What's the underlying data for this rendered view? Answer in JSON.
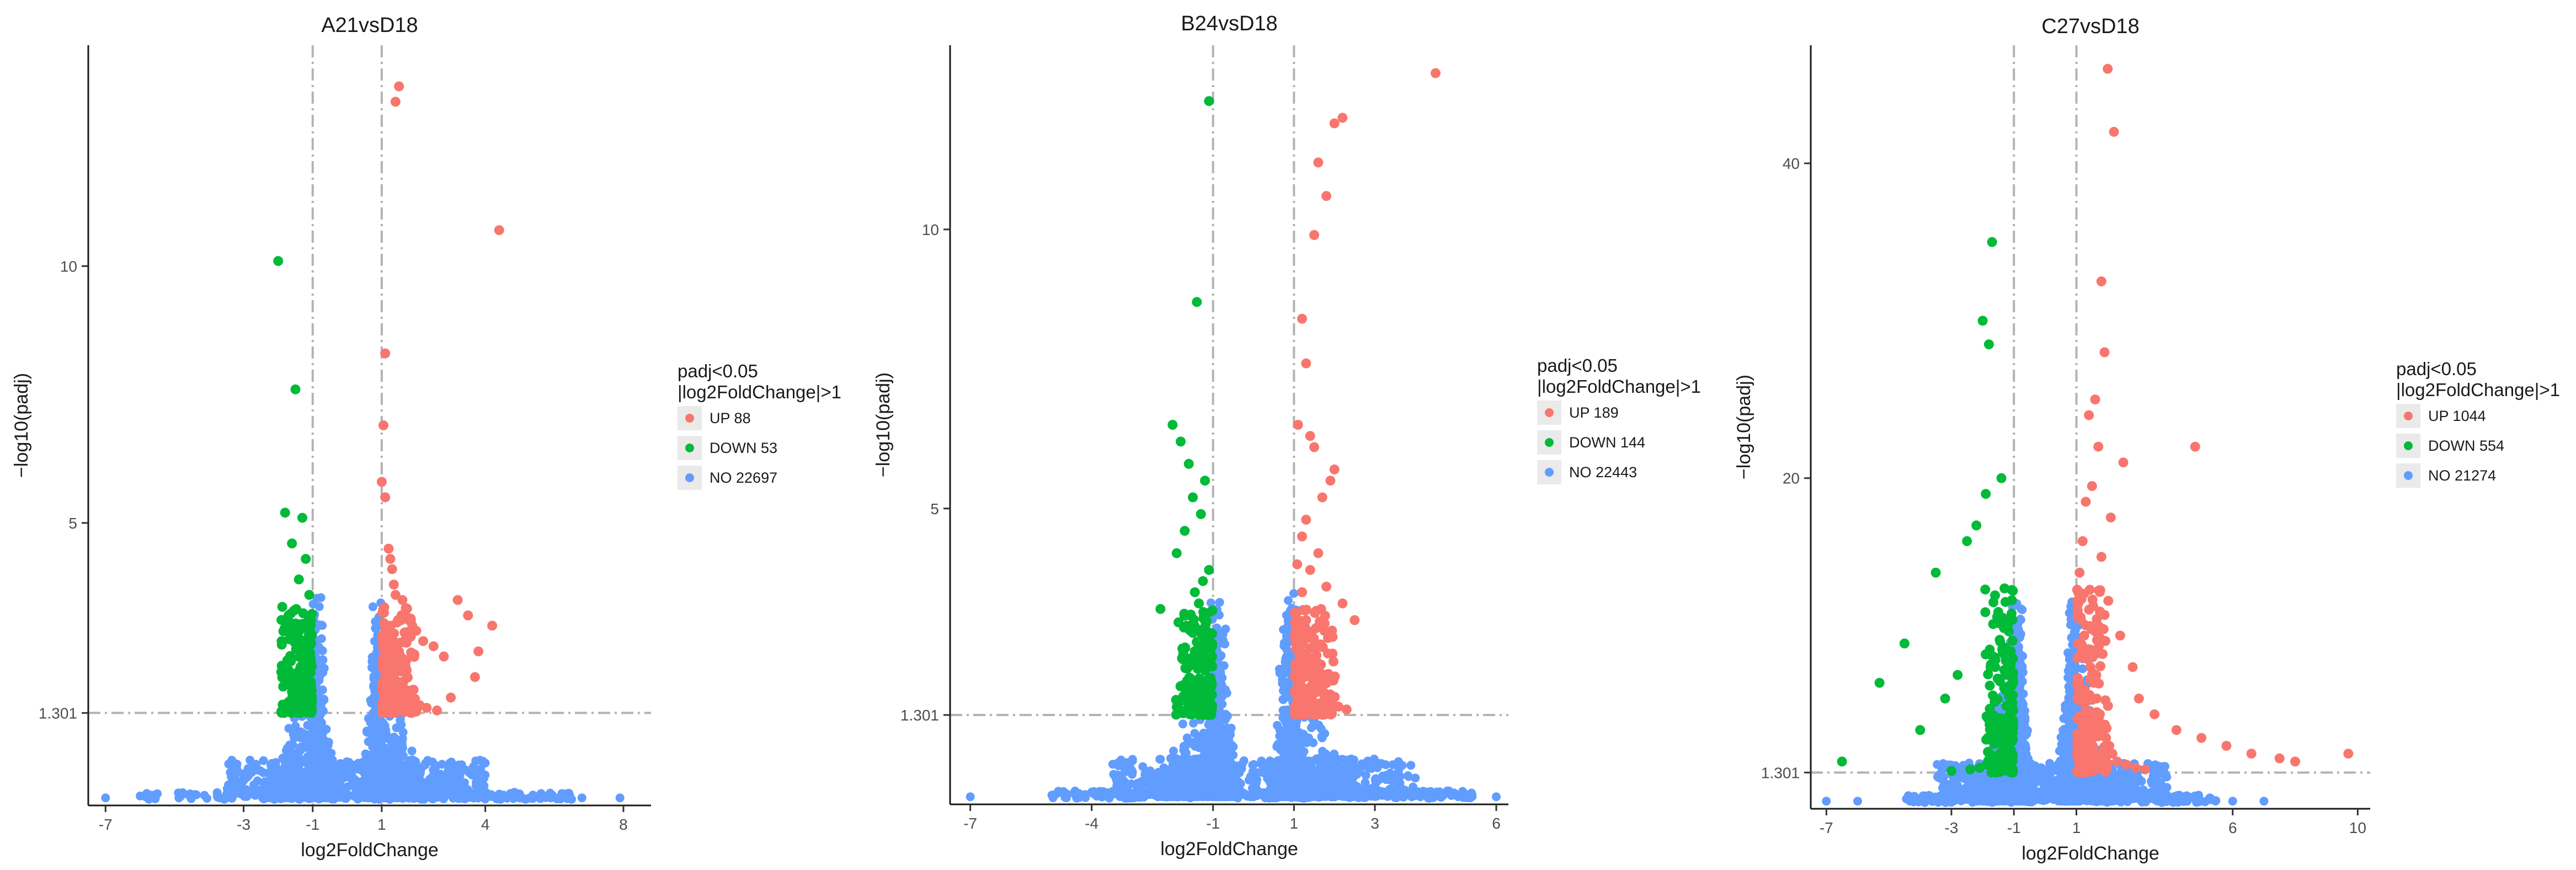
{
  "chart_data": [
    {
      "type": "scatter",
      "title": "A21vsD18",
      "xlabel": "log2FoldChange",
      "ylabel": "−log10(padj)",
      "xlim": [
        -7.5,
        8.8
      ],
      "ylim": [
        -0.5,
        14.3
      ],
      "xticks": [
        -7,
        -3,
        -1,
        1,
        4,
        8
      ],
      "yticks": [
        1.301,
        5,
        10
      ],
      "ytick_labels": [
        "1.301",
        "5",
        "10"
      ],
      "threshold_lines": {
        "x": [
          -1,
          1
        ],
        "y": 1.301
      },
      "legend": {
        "title": [
          "padj<0.05",
          "|log2FoldChange|>1"
        ],
        "entries": [
          {
            "name": "UP",
            "count": "88",
            "color": "#f8766d"
          },
          {
            "name": "DOWN",
            "count": "53",
            "color": "#00ba38"
          },
          {
            "name": "NO",
            "count": "22697",
            "color": "#619cff"
          }
        ]
      },
      "series": [
        {
          "name": "UP",
          "color": "#f8766d",
          "x": [
            1.5,
            1.4,
            1.1,
            1.05,
            1.0,
            1.1,
            1.2,
            1.25,
            1.3,
            1.35,
            1.4,
            1.6,
            1.7,
            1.8,
            2.0,
            2.2,
            2.5,
            2.8,
            3.2,
            3.5,
            1.1,
            1.2,
            1.3,
            1.5,
            1.05,
            1.08,
            1.15,
            1.22,
            1.3,
            1.45,
            1.55,
            1.65,
            1.75,
            1.9,
            2.1,
            2.3,
            2.6,
            3.0,
            3.8,
            4.2,
            4.4,
            3.7,
            1.12,
            1.18,
            1.28,
            1.38,
            1.48,
            1.58,
            2.05
          ],
          "y": [
            13.5,
            13.2,
            8.3,
            6.9,
            5.8,
            5.5,
            4.5,
            4.3,
            4.1,
            3.8,
            3.6,
            3.5,
            3.3,
            3.1,
            2.9,
            2.7,
            2.6,
            2.4,
            3.5,
            3.2,
            3.0,
            2.8,
            2.6,
            2.5,
            2.4,
            2.3,
            2.2,
            2.1,
            2.0,
            1.9,
            1.8,
            1.7,
            1.6,
            1.5,
            1.45,
            1.4,
            1.35,
            1.6,
            2.5,
            3.0,
            10.7,
            2.0,
            1.9,
            1.8,
            1.7,
            1.6,
            1.55,
            1.5,
            1.45
          ]
        },
        {
          "name": "DOWN",
          "color": "#00ba38",
          "x": [
            -2.0,
            -1.5,
            -1.8,
            -1.3,
            -1.6,
            -1.2,
            -1.4,
            -1.1,
            -1.7,
            -1.9,
            -1.25,
            -1.15,
            -1.35,
            -1.45,
            -1.05,
            -1.3,
            -1.5,
            -1.2,
            -1.1,
            -1.4
          ],
          "y": [
            10.1,
            7.6,
            5.2,
            5.1,
            4.6,
            4.3,
            3.9,
            3.6,
            3.2,
            2.7,
            2.6,
            2.4,
            2.2,
            2.0,
            1.9,
            1.8,
            1.7,
            1.6,
            1.5,
            1.4
          ]
        },
        {
          "name": "NO",
          "color": "#619cff",
          "mode": "volcano-cloud",
          "n": 1500,
          "xrange": [
            -6.0,
            6.5
          ],
          "outliers_x": [
            -7.0,
            -5.7,
            5.9,
            6.8,
            7.9
          ]
        }
      ]
    },
    {
      "type": "scatter",
      "title": "B24vsD18",
      "xlabel": "log2FoldChange",
      "ylabel": "−log10(padj)",
      "xlim": [
        -7.5,
        6.3
      ],
      "ylim": [
        -0.3,
        13.3
      ],
      "xticks": [
        -7,
        -4,
        -1,
        1,
        3,
        6
      ],
      "yticks": [
        1.301,
        5,
        10
      ],
      "ytick_labels": [
        "1.301",
        "5",
        "10"
      ],
      "threshold_lines": {
        "x": [
          -1,
          1
        ],
        "y": 1.301
      },
      "legend": {
        "title": [
          "padj<0.05",
          "|log2FoldChange|>1"
        ],
        "entries": [
          {
            "name": "UP",
            "count": "189",
            "color": "#f8766d"
          },
          {
            "name": "DOWN",
            "count": "144",
            "color": "#00ba38"
          },
          {
            "name": "NO",
            "count": "22443",
            "color": "#619cff"
          }
        ]
      },
      "series": [
        {
          "name": "UP",
          "color": "#f8766d",
          "x": [
            4.5,
            2.2,
            2.0,
            1.6,
            1.8,
            1.5,
            1.2,
            1.3,
            1.1,
            1.4,
            1.5,
            2.0,
            1.9,
            1.7,
            1.3,
            1.2,
            1.6,
            1.4,
            1.8,
            2.2,
            2.5,
            1.1,
            1.15,
            1.25,
            1.35,
            1.45,
            1.55,
            1.65,
            1.75,
            1.85,
            1.95,
            2.1,
            2.3,
            1.05,
            1.08,
            1.2,
            1.3,
            1.4,
            1.5,
            1.6
          ],
          "y": [
            12.8,
            12.0,
            11.9,
            11.2,
            10.6,
            9.9,
            8.4,
            7.6,
            6.5,
            6.3,
            6.1,
            5.7,
            5.5,
            5.2,
            4.8,
            4.5,
            4.2,
            3.9,
            3.6,
            3.3,
            3.0,
            2.8,
            2.6,
            2.4,
            2.2,
            2.0,
            1.9,
            1.8,
            1.7,
            1.6,
            1.5,
            1.45,
            1.4,
            1.35,
            4.0,
            3.5,
            3.0,
            2.5,
            2.0,
            1.5
          ]
        },
        {
          "name": "DOWN",
          "color": "#00ba38",
          "x": [
            -1.1,
            -1.4,
            -2.0,
            -1.8,
            -1.6,
            -1.2,
            -1.5,
            -1.3,
            -1.7,
            -2.3,
            -1.9,
            -1.1,
            -1.25,
            -1.45,
            -1.35,
            -1.55,
            -1.65,
            -1.15,
            -1.05,
            -1.75,
            -1.2,
            -1.4,
            -1.3,
            -1.1,
            -1.6,
            -1.5
          ],
          "y": [
            12.3,
            8.7,
            6.5,
            6.2,
            5.8,
            5.5,
            5.2,
            4.9,
            4.6,
            3.2,
            4.2,
            3.9,
            3.7,
            3.5,
            3.3,
            3.1,
            2.9,
            2.7,
            2.5,
            2.3,
            2.1,
            1.9,
            1.7,
            1.6,
            1.5,
            1.4
          ]
        },
        {
          "name": "NO",
          "color": "#619cff",
          "mode": "volcano-cloud",
          "n": 1500,
          "xrange": [
            -5.0,
            5.5
          ],
          "outliers_x": [
            -7.0,
            5.2,
            6.0
          ]
        }
      ]
    },
    {
      "type": "scatter",
      "title": "C27vsD18",
      "xlabel": "log2FoldChange",
      "ylabel": "−log10(padj)",
      "xlim": [
        -7.5,
        10.4
      ],
      "ylim": [
        -1.0,
        47.5
      ],
      "xticks": [
        -7,
        -3,
        -1,
        1,
        6,
        10
      ],
      "yticks": [
        1.301,
        20,
        40
      ],
      "ytick_labels": [
        "1.301",
        "20",
        "40"
      ],
      "threshold_lines": {
        "x": [
          -1,
          1
        ],
        "y": 1.301
      },
      "legend": {
        "title": [
          "padj<0.05",
          "|log2FoldChange|>1"
        ],
        "entries": [
          {
            "name": "UP",
            "count": "1044",
            "color": "#f8766d"
          },
          {
            "name": "DOWN",
            "count": "554",
            "color": "#00ba38"
          },
          {
            "name": "NO",
            "count": "21274",
            "color": "#619cff"
          }
        ]
      },
      "series": [
        {
          "name": "UP",
          "color": "#f8766d",
          "x": [
            2.0,
            2.2,
            1.8,
            1.9,
            1.6,
            1.4,
            1.7,
            2.5,
            1.5,
            1.3,
            2.1,
            1.2,
            1.8,
            1.1,
            4.8,
            9.7,
            8.0,
            7.5,
            6.6,
            5.8,
            5.0,
            4.2,
            3.5,
            3.0,
            2.8,
            2.4,
            1.05,
            1.15,
            1.25,
            1.35,
            1.45,
            1.55,
            1.65,
            1.75,
            1.85,
            1.95,
            2.05,
            2.15,
            2.3,
            2.6,
            2.9,
            3.2
          ],
          "y": [
            46.0,
            42.0,
            32.5,
            28.0,
            25.0,
            24.0,
            22.0,
            21.0,
            19.5,
            18.5,
            17.5,
            16.0,
            15.0,
            14.0,
            22.0,
            2.5,
            2.0,
            2.2,
            2.5,
            3.0,
            3.5,
            4.0,
            5.0,
            6.0,
            8.0,
            10.0,
            12.0,
            11.0,
            10.0,
            9.0,
            8.0,
            7.0,
            6.0,
            5.0,
            4.0,
            3.5,
            3.0,
            2.5,
            2.0,
            1.8,
            1.6,
            1.5
          ]
        },
        {
          "name": "DOWN",
          "color": "#00ba38",
          "x": [
            -1.7,
            -2.0,
            -1.8,
            -1.4,
            -1.9,
            -2.2,
            -2.5,
            -3.5,
            -4.5,
            -5.3,
            -6.5,
            -1.3,
            -1.5,
            -1.2,
            -1.1,
            -1.6,
            -2.8,
            -3.2,
            -4.0,
            -1.05,
            -1.25,
            -1.35,
            -1.45,
            -1.55,
            -1.65,
            -1.75,
            -2.1,
            -2.4,
            -3.0
          ],
          "y": [
            35.0,
            30.0,
            28.5,
            20.0,
            19.0,
            17.0,
            16.0,
            14.0,
            9.5,
            7.0,
            2.0,
            13.0,
            11.5,
            10.5,
            9.0,
            8.0,
            7.5,
            6.0,
            4.0,
            3.5,
            3.0,
            2.8,
            2.5,
            2.2,
            2.0,
            1.8,
            1.6,
            1.5,
            1.4
          ]
        },
        {
          "name": "NO",
          "color": "#619cff",
          "mode": "volcano-cloud",
          "n": 1500,
          "xrange": [
            -4.5,
            5.5
          ],
          "outliers_x": [
            -7.0,
            -6.0,
            6.0,
            7.0
          ]
        }
      ]
    }
  ]
}
